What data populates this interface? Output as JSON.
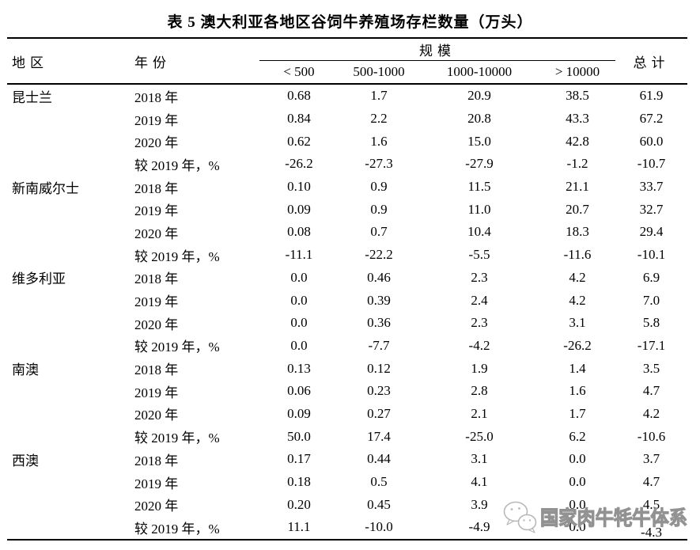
{
  "title": "表 5 澳大利亚各地区谷饲牛养殖场存栏数量（万头）",
  "table": {
    "col_region": "地区",
    "col_year": "年份",
    "col_scale": "规模",
    "col_total": "总计",
    "scale_columns": [
      "< 500",
      "500-1000",
      "1000-10000",
      "> 10000"
    ],
    "regions": [
      {
        "name": "昆士兰",
        "rows": [
          {
            "label": "2018 年",
            "values": [
              "0.68",
              "1.7",
              "20.9",
              "38.5",
              "61.9"
            ]
          },
          {
            "label": "2019 年",
            "values": [
              "0.84",
              "2.2",
              "20.8",
              "43.3",
              "67.2"
            ]
          },
          {
            "label": "2020 年",
            "values": [
              "0.62",
              "1.6",
              "15.0",
              "42.8",
              "60.0"
            ]
          },
          {
            "label": "较 2019 年，%",
            "values": [
              "-26.2",
              "-27.3",
              "-27.9",
              "-1.2",
              "-10.7"
            ]
          }
        ]
      },
      {
        "name": "新南威尔士",
        "rows": [
          {
            "label": "2018 年",
            "values": [
              "0.10",
              "0.9",
              "11.5",
              "21.1",
              "33.7"
            ]
          },
          {
            "label": "2019 年",
            "values": [
              "0.09",
              "0.9",
              "11.0",
              "20.7",
              "32.7"
            ]
          },
          {
            "label": "2020 年",
            "values": [
              "0.08",
              "0.7",
              "10.4",
              "18.3",
              "29.4"
            ]
          },
          {
            "label": "较 2019 年，%",
            "values": [
              "-11.1",
              "-22.2",
              "-5.5",
              "-11.6",
              "-10.1"
            ]
          }
        ]
      },
      {
        "name": "维多利亚",
        "rows": [
          {
            "label": "2018 年",
            "values": [
              "0.0",
              "0.46",
              "2.3",
              "4.2",
              "6.9"
            ]
          },
          {
            "label": "2019 年",
            "values": [
              "0.0",
              "0.39",
              "2.4",
              "4.2",
              "7.0"
            ]
          },
          {
            "label": "2020 年",
            "values": [
              "0.0",
              "0.36",
              "2.3",
              "3.1",
              "5.8"
            ]
          },
          {
            "label": "较 2019 年，%",
            "values": [
              "0.0",
              "-7.7",
              "-4.2",
              "-26.2",
              "-17.1"
            ]
          }
        ]
      },
      {
        "name": "南澳",
        "rows": [
          {
            "label": "2018 年",
            "values": [
              "0.13",
              "0.12",
              "1.9",
              "1.4",
              "3.5"
            ]
          },
          {
            "label": "2019 年",
            "values": [
              "0.06",
              "0.23",
              "2.8",
              "1.6",
              "4.7"
            ]
          },
          {
            "label": "2020 年",
            "values": [
              "0.09",
              "0.27",
              "2.1",
              "1.7",
              "4.2"
            ]
          },
          {
            "label": "较 2019 年，%",
            "values": [
              "50.0",
              "17.4",
              "-25.0",
              "6.2",
              "-10.6"
            ]
          }
        ]
      },
      {
        "name": "西澳",
        "rows": [
          {
            "label": "2018 年",
            "values": [
              "0.17",
              "0.44",
              "3.1",
              "0.0",
              "3.7"
            ]
          },
          {
            "label": "2019 年",
            "values": [
              "0.18",
              "0.5",
              "4.1",
              "0.0",
              "4.7"
            ]
          },
          {
            "label": "2020 年",
            "values": [
              "0.20",
              "0.45",
              "3.9",
              "0.0",
              "4.5"
            ]
          },
          {
            "label": "较 2019 年，%",
            "values": [
              "11.1",
              "-10.0",
              "-4.9",
              "0.0",
              "-4.3"
            ]
          }
        ]
      }
    ]
  },
  "watermark": {
    "text": "国家肉牛牦牛体系",
    "icon": "wechat-chat-bubbles",
    "color": "#929292"
  }
}
